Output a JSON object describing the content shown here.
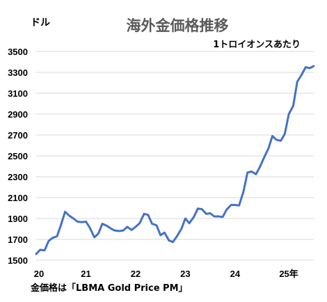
{
  "chart_data": {
    "type": "line",
    "title": "海外金価格推移",
    "y_unit": "ドル",
    "note": "1トロイオンスあたり",
    "source": "金価格は「LBMA Gold Price PM」",
    "x_tick_labels": [
      "20",
      "21",
      "22",
      "23",
      "24",
      "25年"
    ],
    "y_ticks": [
      1500,
      1700,
      1900,
      2100,
      2300,
      2500,
      2700,
      2900,
      3100,
      3300,
      3500
    ],
    "ylim": [
      1500,
      3500
    ],
    "xlim": [
      2020.0,
      2025.583
    ],
    "grid": true,
    "series": [
      {
        "color": "#4472c4",
        "points": [
          [
            2020.0,
            1560
          ],
          [
            2020.08,
            1600
          ],
          [
            2020.17,
            1595
          ],
          [
            2020.25,
            1685
          ],
          [
            2020.33,
            1715
          ],
          [
            2020.42,
            1730
          ],
          [
            2020.5,
            1840
          ],
          [
            2020.58,
            1965
          ],
          [
            2020.67,
            1925
          ],
          [
            2020.75,
            1900
          ],
          [
            2020.83,
            1870
          ],
          [
            2020.92,
            1865
          ],
          [
            2021.0,
            1870
          ],
          [
            2021.08,
            1810
          ],
          [
            2021.17,
            1720
          ],
          [
            2021.25,
            1755
          ],
          [
            2021.33,
            1850
          ],
          [
            2021.42,
            1830
          ],
          [
            2021.5,
            1805
          ],
          [
            2021.58,
            1785
          ],
          [
            2021.67,
            1780
          ],
          [
            2021.75,
            1785
          ],
          [
            2021.83,
            1820
          ],
          [
            2021.92,
            1790
          ],
          [
            2022.0,
            1820
          ],
          [
            2022.08,
            1855
          ],
          [
            2022.17,
            1945
          ],
          [
            2022.25,
            1935
          ],
          [
            2022.33,
            1850
          ],
          [
            2022.42,
            1835
          ],
          [
            2022.5,
            1740
          ],
          [
            2022.58,
            1765
          ],
          [
            2022.67,
            1690
          ],
          [
            2022.75,
            1675
          ],
          [
            2022.83,
            1730
          ],
          [
            2022.92,
            1800
          ],
          [
            2023.0,
            1900
          ],
          [
            2023.08,
            1855
          ],
          [
            2023.17,
            1915
          ],
          [
            2023.25,
            1995
          ],
          [
            2023.33,
            1990
          ],
          [
            2023.42,
            1945
          ],
          [
            2023.5,
            1950
          ],
          [
            2023.58,
            1920
          ],
          [
            2023.67,
            1920
          ],
          [
            2023.75,
            1915
          ],
          [
            2023.83,
            1985
          ],
          [
            2023.92,
            2030
          ],
          [
            2024.0,
            2030
          ],
          [
            2024.08,
            2025
          ],
          [
            2024.17,
            2160
          ],
          [
            2024.25,
            2340
          ],
          [
            2024.33,
            2350
          ],
          [
            2024.42,
            2325
          ],
          [
            2024.5,
            2395
          ],
          [
            2024.58,
            2480
          ],
          [
            2024.67,
            2570
          ],
          [
            2024.75,
            2690
          ],
          [
            2024.83,
            2655
          ],
          [
            2024.92,
            2645
          ],
          [
            2025.0,
            2710
          ],
          [
            2025.08,
            2900
          ],
          [
            2025.17,
            2980
          ],
          [
            2025.25,
            3210
          ],
          [
            2025.33,
            3270
          ],
          [
            2025.42,
            3350
          ],
          [
            2025.5,
            3340
          ],
          [
            2025.58,
            3360
          ]
        ]
      }
    ]
  }
}
